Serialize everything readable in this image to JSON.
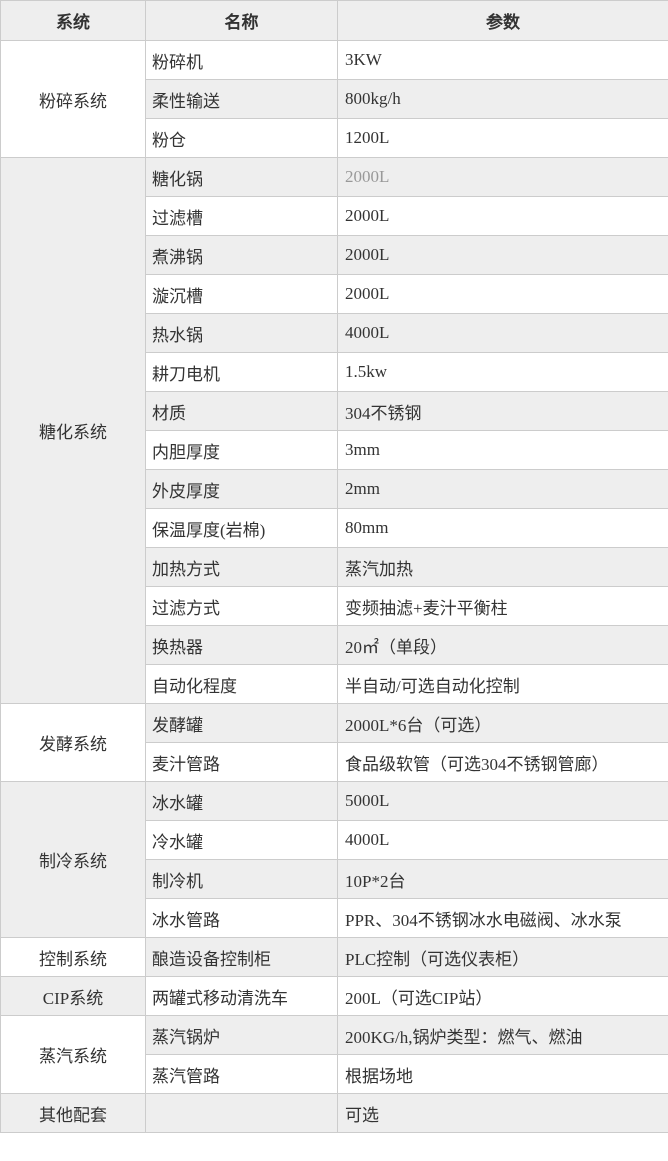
{
  "table": {
    "headers": [
      "系统",
      "名称",
      "参数"
    ],
    "groups": [
      {
        "system": "粉碎系统",
        "rows": [
          {
            "name": "粉碎机",
            "param": "3KW"
          },
          {
            "name": "柔性输送",
            "param": "800kg/h"
          },
          {
            "name": "粉仓",
            "param": "1200L"
          }
        ]
      },
      {
        "system": "糖化系统",
        "rows": [
          {
            "name": "糖化锅",
            "param": "2000L",
            "param_muted": true
          },
          {
            "name": "过滤槽",
            "param": "2000L"
          },
          {
            "name": "煮沸锅",
            "param": "2000L"
          },
          {
            "name": "漩沉槽",
            "param": "2000L"
          },
          {
            "name": "热水锅",
            "param": "4000L"
          },
          {
            "name": "耕刀电机",
            "param": "1.5kw"
          },
          {
            "name": "材质",
            "param": "304不锈钢"
          },
          {
            "name": "内胆厚度",
            "param": "3mm"
          },
          {
            "name": "外皮厚度",
            "param": "2mm"
          },
          {
            "name": "保温厚度(岩棉)",
            "param": "80mm"
          },
          {
            "name": "加热方式",
            "param": "蒸汽加热"
          },
          {
            "name": "过滤方式",
            "param": "变频抽滤+麦汁平衡柱"
          },
          {
            "name": "换热器",
            "param": "20㎡（单段）"
          },
          {
            "name": "自动化程度",
            "param": "半自动/可选自动化控制"
          }
        ]
      },
      {
        "system": "发酵系统",
        "rows": [
          {
            "name": "发酵罐",
            "param": "2000L*6台（可选）"
          },
          {
            "name": "麦汁管路",
            "param": "食品级软管（可选304不锈钢管廊）"
          }
        ]
      },
      {
        "system": "制冷系统",
        "rows": [
          {
            "name": "冰水罐",
            "param": "5000L"
          },
          {
            "name": "冷水罐",
            "param": "4000L"
          },
          {
            "name": "制冷机",
            "param": "10P*2台"
          },
          {
            "name": "冰水管路",
            "param": "PPR、304不锈钢冰水电磁阀、冰水泵"
          }
        ]
      },
      {
        "system": "控制系统",
        "rows": [
          {
            "name": "酿造设备控制柜",
            "param": "PLC控制（可选仪表柜）"
          }
        ]
      },
      {
        "system": "CIP系统",
        "rows": [
          {
            "name": "两罐式移动清洗车",
            "param": "200L（可选CIP站）"
          }
        ]
      },
      {
        "system": "蒸汽系统",
        "rows": [
          {
            "name": "蒸汽锅炉",
            "param": "200KG/h,锅炉类型：燃气、燃油"
          },
          {
            "name": "蒸汽管路",
            "param": "根据场地"
          }
        ]
      },
      {
        "system": "其他配套",
        "rows": [
          {
            "name": "",
            "param": "可选"
          }
        ]
      }
    ],
    "colors": {
      "stripe": "#eeeeee",
      "border": "#cccccc",
      "text": "#333333",
      "muted": "#999999"
    }
  }
}
